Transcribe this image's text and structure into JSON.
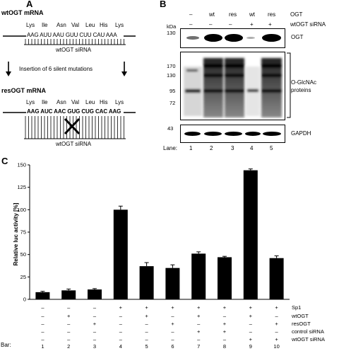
{
  "panel_a": {
    "letter": "A",
    "wt_title": "wtOGT mRNA",
    "res_title": "resOGT mRNA",
    "amino_acids": [
      "Lys",
      "Ile",
      "Asn",
      "Val",
      "Leu",
      "His",
      "Lys"
    ],
    "wt_sequence": "AAG AUU AAU GUU CUU CAU AAA",
    "res_sequence": "AAG AUC AAC GUG CUG CAC AAG",
    "sirna_label_top": "wtOGT siRNA",
    "sirna_label_bottom": "wtOGT siRNA",
    "insertion_note": "Insertion of 6 silent mutations"
  },
  "panel_b": {
    "letter": "B",
    "header_row1_label": "OGT",
    "header_row2_label": "wtOGT siRNA",
    "row1_values": [
      "–",
      "wt",
      "res",
      "wt",
      "res"
    ],
    "row2_values": [
      "–",
      "–",
      "–",
      "+",
      "+"
    ],
    "kda_label": "kDa",
    "ogt_marker": "130",
    "ogt_label": "OGT",
    "glcnac_markers": [
      "170",
      "130",
      "95",
      "72"
    ],
    "glcnac_label_line1": "O-GlcNAc",
    "glcnac_label_line2": "proteins",
    "gapdh_marker": "43",
    "gapdh_label": "GAPDH",
    "lane_title": "Lane:",
    "lanes": [
      "1",
      "2",
      "3",
      "4",
      "5"
    ]
  },
  "panel_c": {
    "letter": "C",
    "row_labels": [
      "Sp1",
      "wtOGT",
      "resOGT",
      "control siRNA",
      "wtOGT siRNA"
    ],
    "conditions": [
      [
        "–",
        "–",
        "–",
        "+",
        "+",
        "+",
        "+",
        "+",
        "+",
        "+"
      ],
      [
        "–",
        "+",
        "–",
        "–",
        "+",
        "–",
        "+",
        "–",
        "+",
        "–"
      ],
      [
        "–",
        "–",
        "+",
        "–",
        "–",
        "+",
        "–",
        "+",
        "–",
        "+"
      ],
      [
        "–",
        "–",
        "–",
        "–",
        "–",
        "–",
        "+",
        "+",
        "–",
        "–"
      ],
      [
        "–",
        "–",
        "–",
        "–",
        "–",
        "–",
        "–",
        "–",
        "+",
        "+"
      ]
    ],
    "bar_title": "Bar:"
  },
  "chart_data": {
    "type": "bar",
    "title": "",
    "xlabel": "",
    "ylabel": "Relative luc activity [%]",
    "ylim": [
      0,
      150
    ],
    "yticks": [
      0,
      25,
      50,
      75,
      100,
      125,
      150
    ],
    "categories": [
      "1",
      "2",
      "3",
      "4",
      "5",
      "6",
      "7",
      "8",
      "9",
      "10"
    ],
    "values": [
      8,
      10,
      11,
      100,
      37,
      35,
      51,
      47,
      144,
      46
    ],
    "errors": [
      1,
      1.5,
      1,
      4,
      4,
      3.5,
      2,
      1,
      1.5,
      2.5
    ],
    "bar_color": "#000000",
    "grid": false
  }
}
